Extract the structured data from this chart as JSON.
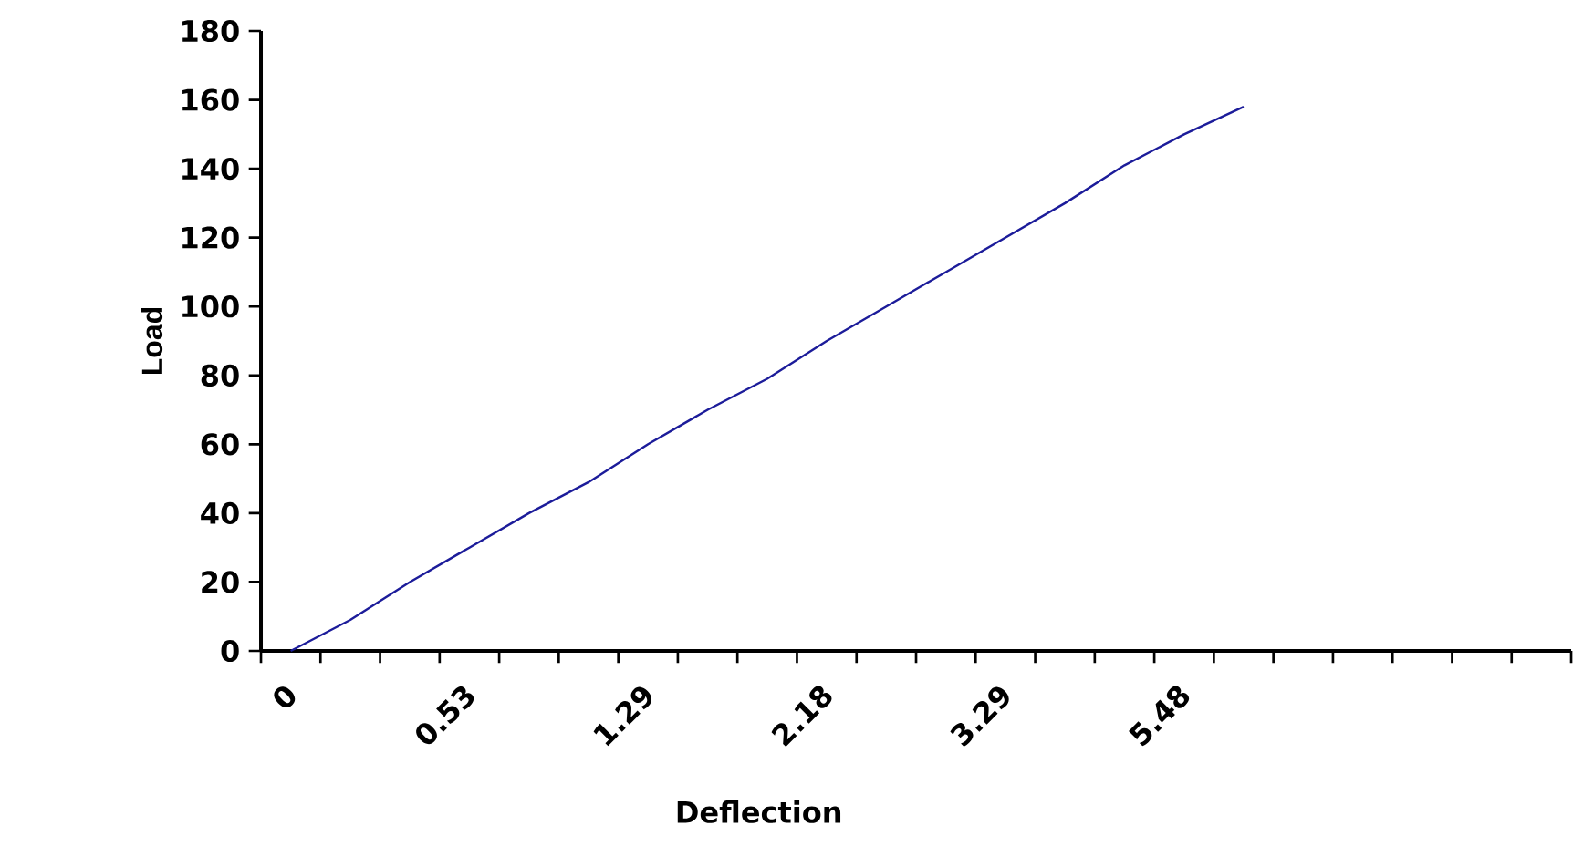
{
  "chart_data": {
    "type": "line",
    "xlabel": "Deflection",
    "ylabel": "Load",
    "categories": [
      "0",
      null,
      null,
      "0.53",
      null,
      null,
      "1.29",
      null,
      null,
      "2.18",
      null,
      null,
      "3.29",
      null,
      null,
      "5.48",
      null,
      null,
      null,
      null,
      null,
      null
    ],
    "series": [
      {
        "color": "#1c1c9a",
        "values": [
          0,
          9,
          20,
          30,
          40,
          49,
          60,
          70,
          79,
          90,
          100,
          110,
          120,
          130,
          141,
          150,
          158,
          null,
          null,
          null,
          null,
          null
        ]
      }
    ],
    "ylim": [
      0,
      180
    ],
    "yticks": [
      0,
      20,
      40,
      60,
      80,
      100,
      120,
      140,
      160,
      180
    ],
    "grid": false,
    "marker": "none",
    "line_style": "solid"
  }
}
